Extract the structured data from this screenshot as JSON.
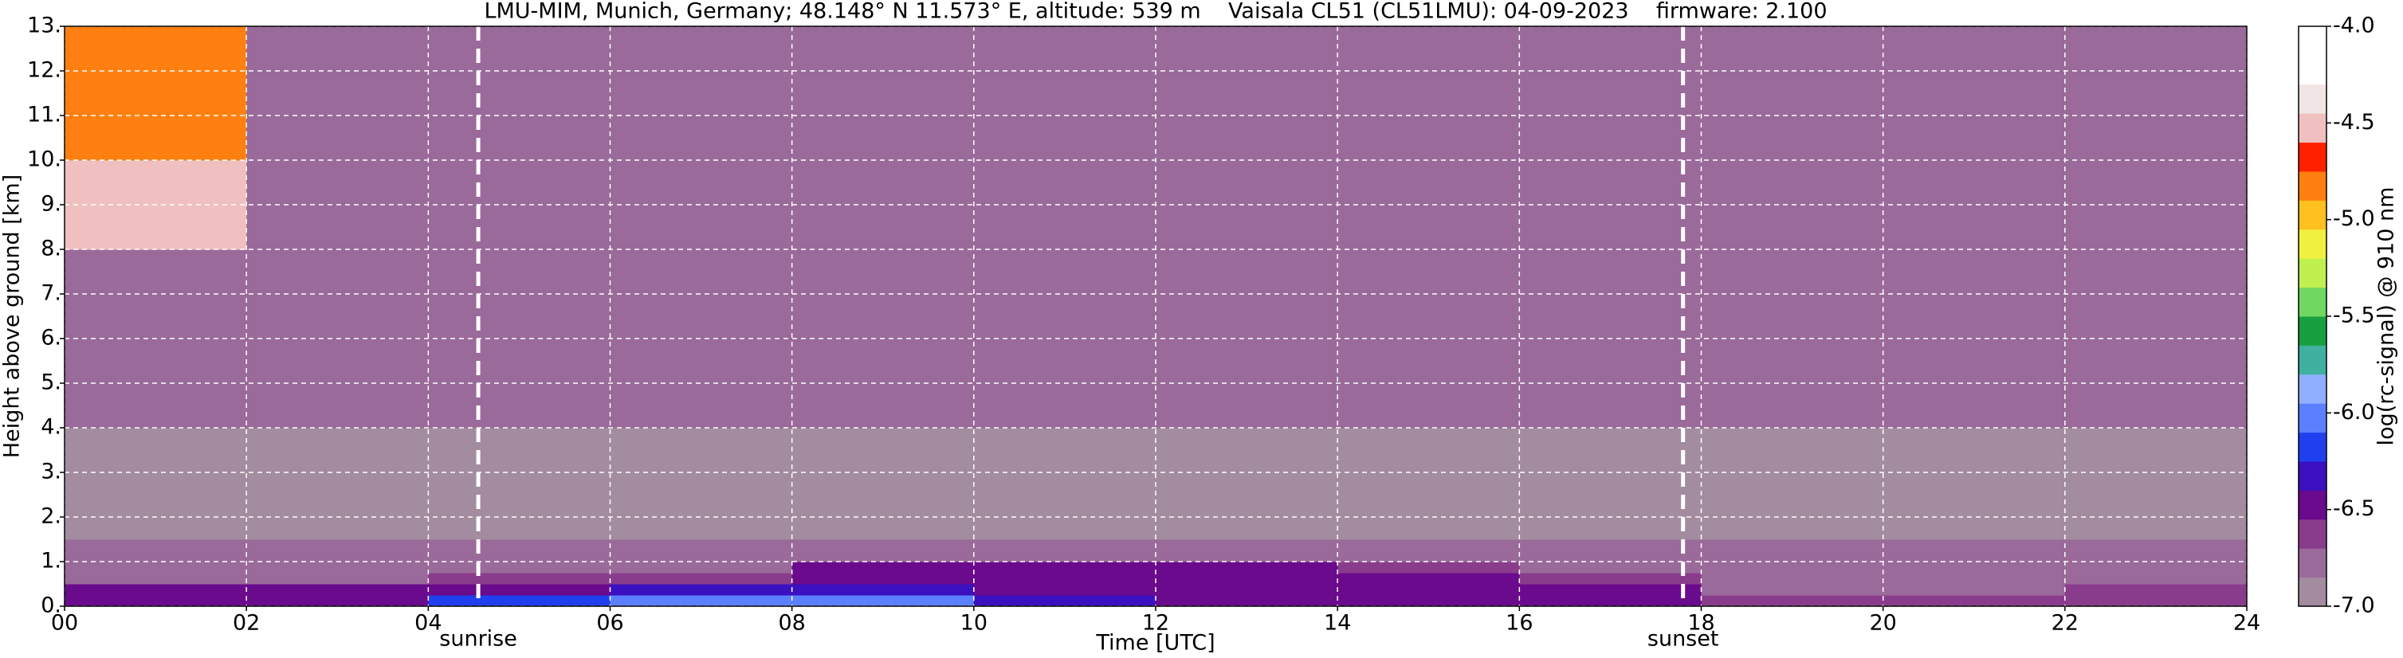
{
  "chart_data": {
    "type": "heatmap",
    "title": "LMU-MIM, Munich, Germany; 48.148° N 11.573° E, altitude: 539 m    Vaisala CL51 (CL51LMU): 04-09-2023    firmware: 2.100",
    "xlabel": "Time [UTC]",
    "ylabel": "Height above ground [km]",
    "colorbar_label": "log(rc-signal) @ 910 nm",
    "xlim": [
      0,
      24
    ],
    "xticks": [
      {
        "value": 0,
        "label": "00"
      },
      {
        "value": 2,
        "label": "02"
      },
      {
        "value": 4,
        "label": "04"
      },
      {
        "value": 6,
        "label": "06"
      },
      {
        "value": 8,
        "label": "08"
      },
      10,
      12,
      14,
      16,
      18,
      20,
      22,
      24
    ],
    "ylim": [
      0,
      13
    ],
    "yticks": [
      {
        "value": 0,
        "label": "0."
      },
      {
        "value": 1,
        "label": "1."
      },
      {
        "value": 2,
        "label": "2."
      },
      {
        "value": 3,
        "label": "3."
      },
      {
        "value": 4,
        "label": "4."
      },
      {
        "value": 5,
        "label": "5."
      },
      {
        "value": 6,
        "label": "6."
      },
      {
        "value": 7,
        "label": "7."
      },
      {
        "value": 8,
        "label": "8."
      },
      {
        "value": 9,
        "label": "9."
      },
      {
        "value": 10,
        "label": "10."
      },
      {
        "value": 11,
        "label": "11."
      },
      {
        "value": 12,
        "label": "12."
      },
      {
        "value": 13,
        "label": "13."
      }
    ],
    "zlim": [
      -7,
      -4
    ],
    "zticks": [
      {
        "value": -4,
        "label": "-4.0"
      },
      {
        "value": -4.5,
        "label": "-4.5"
      },
      {
        "value": -5,
        "label": "-5.0"
      },
      {
        "value": -5.5,
        "label": "-5.5"
      },
      {
        "value": -6,
        "label": "-6.0"
      },
      {
        "value": -6.5,
        "label": "-6.5"
      },
      {
        "value": -7,
        "label": "-7.0"
      }
    ],
    "colorscale": [
      "#a38c9f",
      "#9a6a9a",
      "#8a3c8c",
      "#6a0a8c",
      "#3a10c0",
      "#2040f0",
      "#5a80ff",
      "#90b0ff",
      "#40b0a0",
      "#18a040",
      "#70d860",
      "#c0f050",
      "#f0f040",
      "#ffc020",
      "#ff8010",
      "#ff2000",
      "#f0c0c0",
      "#f0e4e4",
      "#ffffff",
      "#ffffff"
    ],
    "x_edges": [
      0,
      2,
      4,
      6,
      8,
      10,
      12,
      14,
      16,
      18,
      20,
      22,
      24
    ],
    "y_edges": [
      0,
      0.25,
      0.5,
      0.75,
      1,
      1.5,
      2,
      3,
      4,
      6,
      8,
      10,
      13
    ],
    "z": [
      [
        -6.4,
        -6.4,
        -6.2,
        -6.0,
        -6.0,
        -6.3,
        -6.4,
        -6.4,
        -6.4,
        -6.6,
        -6.6,
        -6.6
      ],
      [
        -6.5,
        -6.5,
        -6.5,
        -6.3,
        -6.3,
        -6.4,
        -6.4,
        -6.4,
        -6.5,
        -6.7,
        -6.7,
        -6.6
      ],
      [
        -6.7,
        -6.7,
        -6.6,
        -6.6,
        -6.4,
        -6.4,
        -6.4,
        -6.4,
        -6.6,
        -6.8,
        -6.8,
        -6.8
      ],
      [
        -6.8,
        -6.8,
        -6.8,
        -6.8,
        -6.5,
        -6.5,
        -6.5,
        -6.6,
        -6.8,
        -6.8,
        -6.8,
        -6.8
      ],
      [
        -6.8,
        -6.8,
        -6.8,
        -6.8,
        -6.8,
        -6.8,
        -6.8,
        -6.8,
        -6.8,
        -6.8,
        -6.8,
        -6.8
      ],
      [
        -6.9,
        -6.9,
        -6.9,
        -6.9,
        -6.9,
        -6.9,
        -6.9,
        -6.9,
        -6.9,
        -6.9,
        -6.9,
        -6.9
      ],
      [
        -6.9,
        -6.9,
        -6.9,
        -6.9,
        -6.9,
        -6.9,
        -6.9,
        -6.9,
        -6.9,
        -6.9,
        -6.9,
        -6.9
      ],
      [
        -6.9,
        -6.9,
        -6.9,
        -6.9,
        -6.9,
        -6.9,
        -6.9,
        -6.9,
        -6.9,
        -6.9,
        -6.9,
        -6.9
      ],
      [
        -6.8,
        -6.8,
        -6.8,
        -6.8,
        -6.8,
        -6.8,
        -6.8,
        -6.8,
        -6.8,
        -6.8,
        -6.8,
        -6.8
      ],
      [
        -6.7,
        -6.7,
        -6.7,
        -6.7,
        -6.7,
        -6.7,
        -6.7,
        -6.7,
        -6.7,
        -6.7,
        -6.7,
        -6.7
      ],
      [
        -4.6,
        -6.7,
        -6.7,
        -6.7,
        -6.7,
        -6.7,
        -6.7,
        -6.7,
        -6.7,
        -6.7,
        -6.7,
        -6.7
      ],
      [
        -4.8,
        -6.7,
        -6.7,
        -6.7,
        -6.7,
        -6.7,
        -6.7,
        -6.7,
        -6.7,
        -6.7,
        -6.7,
        -6.7
      ]
    ],
    "grid": true,
    "events": [
      {
        "x": 4.55,
        "label": "sunrise"
      },
      {
        "x": 17.8,
        "label": "sunset"
      }
    ]
  }
}
